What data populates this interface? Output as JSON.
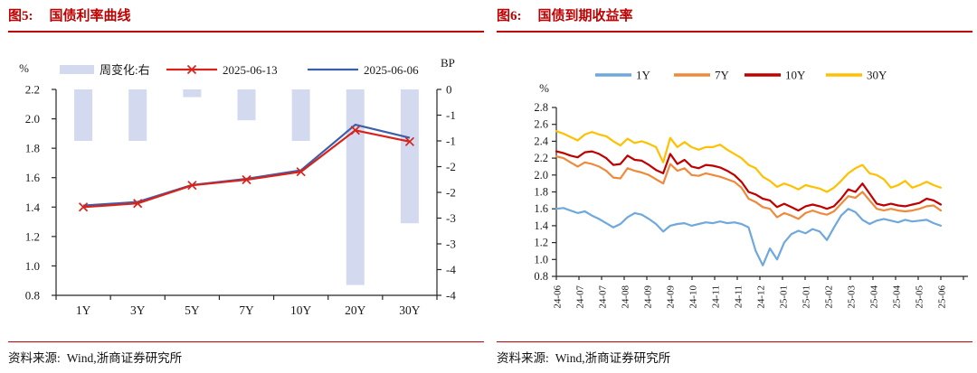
{
  "panels": [
    {
      "figure_label": "图5:",
      "figure_title": "国债利率曲线",
      "source_label": "资料来源:",
      "source_text": "Wind,浙商证券研究所",
      "accent_color": "#C00000"
    },
    {
      "figure_label": "图6:",
      "figure_title": "国债到期收益率",
      "source_label": "资料来源:",
      "source_text": "Wind,浙商证券研究所",
      "accent_color": "#C00000"
    }
  ],
  "chart_data": [
    {
      "type": "bar+line",
      "title": "国债利率曲线",
      "categories": [
        "1Y",
        "3Y",
        "5Y",
        "7Y",
        "10Y",
        "20Y",
        "30Y"
      ],
      "left_axis": {
        "unit": "%",
        "min": 0.8,
        "max": 2.2,
        "step": 0.2,
        "tick_labels": [
          "2.2",
          "2.0",
          "1.8",
          "1.6",
          "1.4",
          "1.2",
          "1.0",
          "0.8"
        ]
      },
      "right_axis": {
        "unit": "BP",
        "min": -4,
        "max": 0,
        "step": -0.5,
        "tick_labels": [
          "0",
          "-1",
          "-1",
          "-2",
          "-2",
          "-3",
          "-3",
          "-4",
          "-4"
        ]
      },
      "bar_series": {
        "name": "周变化:右",
        "axis": "right",
        "color": "#D3DAF0",
        "values": [
          -1.0,
          -1.0,
          -0.15,
          -0.6,
          -1.0,
          -3.8,
          -2.6
        ]
      },
      "line_series": [
        {
          "name": "2025-06-13",
          "color": "#D8231B",
          "marker": "x",
          "values": [
            1.4,
            1.425,
            1.548,
            1.586,
            1.64,
            1.922,
            1.845
          ]
        },
        {
          "name": "2025-06-06",
          "color": "#3D5FA9",
          "marker": "none",
          "values": [
            1.41,
            1.435,
            1.55,
            1.592,
            1.65,
            1.96,
            1.871
          ]
        }
      ],
      "grid": false,
      "legend_position": "top"
    },
    {
      "type": "line",
      "title": "国债到期收益率",
      "y_axis": {
        "unit": "%",
        "min": 0.8,
        "max": 2.8,
        "step": 0.2,
        "tick_labels": [
          "2.8",
          "2.6",
          "2.4",
          "2.2",
          "2.0",
          "1.8",
          "1.6",
          "1.4",
          "1.2",
          "1.0",
          "0.8"
        ]
      },
      "x_tick_labels": [
        "24-06",
        "24-07",
        "24-07",
        "24-08",
        "24-09",
        "24-09",
        "24-10",
        "24-11",
        "24-11",
        "24-12",
        "25-01",
        "25-01",
        "25-02",
        "25-03",
        "25-04",
        "25-04",
        "25-05",
        "25-06"
      ],
      "series": [
        {
          "name": "1Y",
          "color": "#6FA8DC",
          "values": [
            1.6,
            1.61,
            1.58,
            1.55,
            1.57,
            1.52,
            1.48,
            1.43,
            1.38,
            1.42,
            1.5,
            1.55,
            1.53,
            1.48,
            1.42,
            1.33,
            1.4,
            1.42,
            1.43,
            1.4,
            1.42,
            1.44,
            1.43,
            1.45,
            1.43,
            1.44,
            1.42,
            1.38,
            1.1,
            0.93,
            1.13,
            1.0,
            1.2,
            1.3,
            1.34,
            1.31,
            1.36,
            1.33,
            1.23,
            1.38,
            1.52,
            1.6,
            1.56,
            1.47,
            1.42,
            1.46,
            1.48,
            1.46,
            1.44,
            1.47,
            1.45,
            1.46,
            1.47,
            1.43,
            1.4
          ]
        },
        {
          "name": "7Y",
          "color": "#EF8A3C",
          "values": [
            2.22,
            2.2,
            2.15,
            2.1,
            2.15,
            2.13,
            2.1,
            2.05,
            1.97,
            1.96,
            2.08,
            2.05,
            2.03,
            2.0,
            1.95,
            1.9,
            2.13,
            2.05,
            2.08,
            2.0,
            1.99,
            2.02,
            2.0,
            1.98,
            1.95,
            1.92,
            1.85,
            1.72,
            1.68,
            1.62,
            1.6,
            1.5,
            1.55,
            1.52,
            1.48,
            1.55,
            1.58,
            1.55,
            1.53,
            1.57,
            1.66,
            1.75,
            1.73,
            1.8,
            1.7,
            1.6,
            1.58,
            1.6,
            1.58,
            1.57,
            1.58,
            1.6,
            1.63,
            1.64,
            1.58
          ]
        },
        {
          "name": "10Y",
          "color": "#C00000",
          "values": [
            2.28,
            2.26,
            2.23,
            2.21,
            2.27,
            2.28,
            2.25,
            2.2,
            2.12,
            2.13,
            2.23,
            2.18,
            2.17,
            2.12,
            2.06,
            2.02,
            2.25,
            2.13,
            2.18,
            2.1,
            2.08,
            2.12,
            2.11,
            2.09,
            2.05,
            2.0,
            1.92,
            1.8,
            1.77,
            1.72,
            1.7,
            1.62,
            1.66,
            1.62,
            1.58,
            1.63,
            1.65,
            1.63,
            1.6,
            1.63,
            1.72,
            1.83,
            1.8,
            1.9,
            1.78,
            1.66,
            1.64,
            1.66,
            1.64,
            1.63,
            1.65,
            1.67,
            1.72,
            1.7,
            1.65
          ]
        },
        {
          "name": "30Y",
          "color": "#FFC000",
          "values": [
            2.52,
            2.49,
            2.45,
            2.41,
            2.48,
            2.51,
            2.48,
            2.46,
            2.4,
            2.35,
            2.43,
            2.38,
            2.4,
            2.37,
            2.33,
            2.15,
            2.44,
            2.33,
            2.39,
            2.33,
            2.3,
            2.33,
            2.33,
            2.36,
            2.3,
            2.25,
            2.2,
            2.12,
            2.08,
            1.98,
            1.93,
            1.86,
            1.9,
            1.87,
            1.83,
            1.88,
            1.86,
            1.84,
            1.8,
            1.85,
            1.93,
            2.02,
            2.08,
            2.12,
            2.02,
            2.0,
            1.95,
            1.85,
            1.88,
            1.93,
            1.85,
            1.88,
            1.92,
            1.88,
            1.85
          ]
        }
      ],
      "grid": false,
      "legend_position": "top"
    }
  ]
}
